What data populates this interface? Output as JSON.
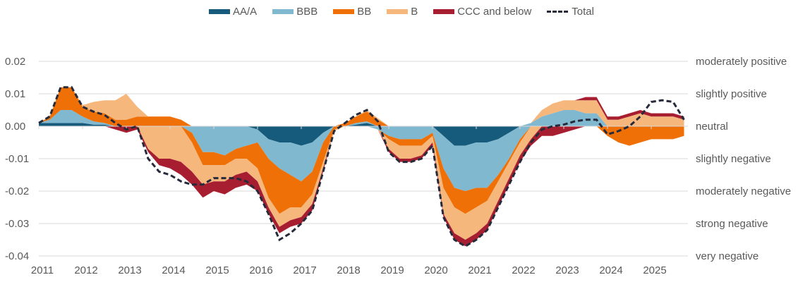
{
  "chart_data": {
    "type": "area",
    "title": "",
    "xlabel": "",
    "ylabel": "",
    "ylim": [
      -0.04,
      0.02
    ],
    "xlim": [
      2011,
      2025.75
    ],
    "grid": true,
    "legend_position": "top-center",
    "y_ticks": [
      "0.02",
      "0.01",
      "0.00",
      "-0.01",
      "-0.02",
      "-0.03",
      "-0.04"
    ],
    "y_tick_values": [
      0.02,
      0.01,
      0.0,
      -0.01,
      -0.02,
      -0.03,
      -0.04
    ],
    "y2_labels": [
      "moderately positive",
      "slightly positive",
      "neutral",
      "slightly negative",
      "moderately negative",
      "strong negative",
      "very negative"
    ],
    "x_ticks": [
      "2011",
      "2012",
      "2013",
      "2014",
      "2015",
      "2016",
      "2017",
      "2018",
      "2019",
      "2020",
      "2021",
      "2022",
      "2023",
      "2024",
      "2025"
    ],
    "x": [
      2011.0,
      2011.25,
      2011.5,
      2011.75,
      2012.0,
      2012.25,
      2012.5,
      2012.75,
      2013.0,
      2013.25,
      2013.5,
      2013.75,
      2014.0,
      2014.25,
      2014.5,
      2014.75,
      2015.0,
      2015.25,
      2015.5,
      2015.75,
      2016.0,
      2016.25,
      2016.5,
      2016.75,
      2017.0,
      2017.25,
      2017.5,
      2017.75,
      2018.0,
      2018.25,
      2018.5,
      2018.75,
      2019.0,
      2019.25,
      2019.5,
      2019.75,
      2020.0,
      2020.25,
      2020.5,
      2020.75,
      2021.0,
      2021.25,
      2021.5,
      2021.75,
      2022.0,
      2022.25,
      2022.5,
      2022.75,
      2023.0,
      2023.25,
      2023.5,
      2023.75,
      2024.0,
      2024.25,
      2024.5,
      2024.75,
      2025.0,
      2025.25,
      2025.5,
      2025.75
    ],
    "series": [
      {
        "name": "AA/A",
        "color": "#175b7c",
        "values": [
          0.001,
          0.001,
          0.001,
          0.001,
          0.001,
          0.0005,
          0.0005,
          0,
          0,
          0,
          0,
          0,
          0,
          0,
          0,
          0,
          0,
          0,
          0,
          0,
          -0.001,
          -0.004,
          -0.005,
          -0.005,
          -0.006,
          -0.005,
          -0.002,
          0,
          0,
          0.0005,
          0.001,
          0,
          0,
          0,
          0,
          0,
          0,
          -0.003,
          -0.006,
          -0.006,
          -0.005,
          -0.005,
          -0.004,
          -0.002,
          0,
          0,
          0,
          0,
          0,
          0,
          0,
          0,
          0,
          0,
          0,
          0,
          0,
          0,
          0,
          0
        ]
      },
      {
        "name": "BBB",
        "color": "#7fb8cf",
        "values": [
          0,
          0.001,
          0.004,
          0.004,
          0.002,
          0.001,
          0.0005,
          0,
          0,
          0,
          0,
          0,
          0,
          0,
          -0.002,
          -0.008,
          -0.008,
          -0.009,
          -0.007,
          -0.006,
          -0.004,
          -0.006,
          -0.008,
          -0.01,
          -0.011,
          -0.009,
          -0.003,
          0,
          0,
          0.0005,
          0.0005,
          -0.001,
          -0.003,
          -0.004,
          -0.004,
          -0.004,
          -0.002,
          -0.01,
          -0.013,
          -0.014,
          -0.014,
          -0.014,
          -0.011,
          -0.008,
          -0.004,
          0.001,
          0.003,
          0.004,
          0.005,
          0.005,
          0.004,
          0.004,
          0,
          0,
          0,
          0,
          0,
          0,
          0,
          0
        ]
      },
      {
        "name": "BB",
        "color": "#ef7006",
        "values": [
          0,
          0.001,
          0.007,
          0.007,
          0.003,
          0.003,
          0.003,
          0.002,
          0.002,
          0.003,
          0.003,
          0.003,
          0.003,
          0.002,
          -0.003,
          -0.004,
          -0.004,
          -0.003,
          -0.003,
          -0.004,
          -0.008,
          -0.012,
          -0.014,
          -0.01,
          -0.008,
          -0.007,
          -0.006,
          -0.001,
          0.001,
          0.002,
          0.003,
          0.002,
          -0.001,
          -0.002,
          -0.002,
          -0.002,
          -0.001,
          -0.006,
          -0.006,
          -0.007,
          -0.006,
          -0.004,
          -0.002,
          -0.001,
          -0.001,
          0,
          0,
          0,
          0,
          0,
          0,
          0,
          -0.003,
          -0.005,
          -0.006,
          -0.005,
          -0.004,
          -0.004,
          -0.004,
          -0.003
        ]
      },
      {
        "name": "B",
        "color": "#f5b77c",
        "values": [
          0,
          0,
          0,
          0,
          0.0005,
          0.003,
          0.004,
          0.006,
          0.008,
          0.003,
          -0.007,
          -0.01,
          -0.01,
          -0.011,
          -0.009,
          -0.006,
          -0.005,
          -0.005,
          -0.005,
          -0.004,
          -0.004,
          -0.003,
          -0.004,
          -0.004,
          -0.003,
          -0.003,
          -0.002,
          -0.0005,
          0,
          0,
          0.0005,
          0.0005,
          -0.003,
          -0.004,
          -0.004,
          -0.003,
          -0.002,
          -0.008,
          -0.008,
          -0.008,
          -0.008,
          -0.007,
          -0.006,
          -0.005,
          -0.004,
          -0.004,
          0.002,
          0.003,
          0.003,
          0.003,
          0.004,
          0.004,
          0.002,
          0.002,
          0.003,
          0.004,
          0.003,
          0.003,
          0.003,
          0.002
        ]
      },
      {
        "name": "CCC and below",
        "color": "#a81e31",
        "values": [
          0,
          0,
          0,
          0,
          0,
          0,
          0,
          -0.001,
          -0.002,
          -0.001,
          -0.001,
          -0.002,
          -0.003,
          -0.004,
          -0.004,
          -0.004,
          -0.003,
          -0.004,
          -0.004,
          -0.004,
          -0.003,
          -0.002,
          -0.002,
          -0.002,
          -0.002,
          -0.002,
          -0.001,
          0,
          0,
          0,
          0,
          0,
          -0.001,
          -0.001,
          -0.001,
          -0.001,
          -0.001,
          -0.001,
          -0.002,
          -0.002,
          -0.002,
          -0.002,
          -0.002,
          -0.002,
          -0.002,
          -0.002,
          -0.003,
          -0.003,
          -0.002,
          -0.001,
          0.001,
          0.001,
          0.001,
          0.001,
          0.001,
          0.001,
          0.001,
          0.001,
          0.001,
          0.001
        ]
      }
    ],
    "total": {
      "name": "Total",
      "color": "#262a3a",
      "style": "dashed",
      "values": [
        0.001,
        0.003,
        0.012,
        0.012,
        0.006,
        0.0045,
        0.0035,
        0.001,
        -0.001,
        0.0,
        -0.01,
        -0.014,
        -0.015,
        -0.017,
        -0.018,
        -0.018,
        -0.016,
        -0.016,
        -0.016,
        -0.017,
        -0.02,
        -0.027,
        -0.035,
        -0.033,
        -0.03,
        -0.026,
        -0.014,
        -0.0015,
        0.001,
        0.0035,
        0.005,
        0.0015,
        -0.008,
        -0.011,
        -0.011,
        -0.01,
        -0.006,
        -0.028,
        -0.035,
        -0.037,
        -0.035,
        -0.032,
        -0.025,
        -0.018,
        -0.011,
        -0.005,
        -0.001,
        0.0,
        0.0005,
        0.0015,
        0.002,
        0.002,
        -0.0025,
        -0.0015,
        0.0,
        0.003,
        0.0075,
        0.008,
        0.0075,
        0.002
      ]
    }
  },
  "legend": [
    {
      "label": "AA/A",
      "color": "#175b7c",
      "type": "area"
    },
    {
      "label": "BBB",
      "color": "#7fb8cf",
      "type": "area"
    },
    {
      "label": "BB",
      "color": "#ef7006",
      "type": "area"
    },
    {
      "label": "B",
      "color": "#f5b77c",
      "type": "area"
    },
    {
      "label": "CCC and below",
      "color": "#a81e31",
      "type": "area"
    },
    {
      "label": "Total",
      "color": "#262a3a",
      "type": "dashed-line"
    }
  ]
}
